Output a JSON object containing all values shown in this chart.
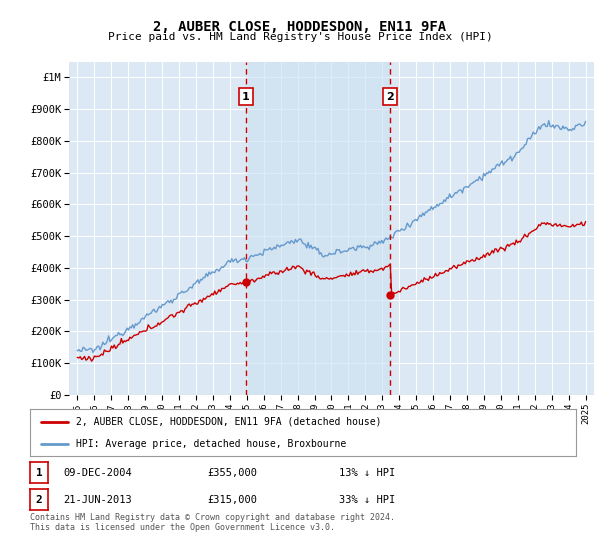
{
  "title": "2, AUBER CLOSE, HODDESDON, EN11 9FA",
  "subtitle": "Price paid vs. HM Land Registry's House Price Index (HPI)",
  "background_color": "#ffffff",
  "plot_bg_color": "#dce9f5",
  "grid_color": "#cccccc",
  "ylim": [
    0,
    1050000
  ],
  "yticks": [
    0,
    100000,
    200000,
    300000,
    400000,
    500000,
    600000,
    700000,
    800000,
    900000,
    1000000
  ],
  "ytick_labels": [
    "£0",
    "£100K",
    "£200K",
    "£300K",
    "£400K",
    "£500K",
    "£600K",
    "£700K",
    "£800K",
    "£900K",
    "£1M"
  ],
  "red_line_label": "2, AUBER CLOSE, HODDESDON, EN11 9FA (detached house)",
  "blue_line_label": "HPI: Average price, detached house, Broxbourne",
  "sale1_date": "09-DEC-2004",
  "sale1_price": 355000,
  "sale1_hpi_diff": "13% ↓ HPI",
  "sale1_year": 2004.94,
  "sale2_date": "21-JUN-2013",
  "sale2_price": 315000,
  "sale2_hpi_diff": "33% ↓ HPI",
  "sale2_year": 2013.47,
  "footer": "Contains HM Land Registry data © Crown copyright and database right 2024.\nThis data is licensed under the Open Government Licence v3.0.",
  "red_color": "#cc0000",
  "blue_color": "#6699cc",
  "vline_color": "#cc0000",
  "shade_color": "#ccdff0"
}
